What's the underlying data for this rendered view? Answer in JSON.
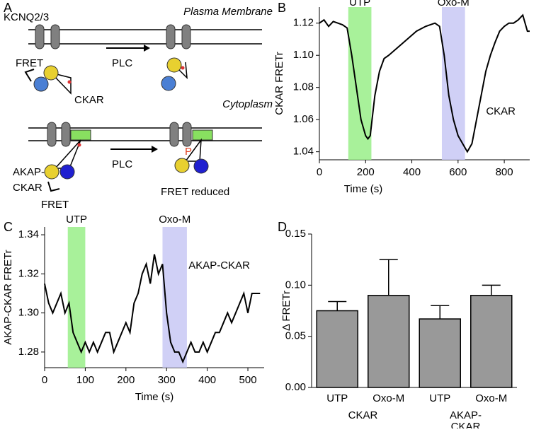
{
  "diagram": {
    "panel": "A",
    "texts": {
      "channel": "KCNQ2/3",
      "membrane": "Plasma Membrane",
      "fret1": "FRET",
      "plc1": "PLC",
      "ckar": "CKAR",
      "cytoplasm": "Cytoplasm",
      "akap1": "AKAP-",
      "akap2": "CKAR",
      "plc2": "PLC",
      "phospho": "P",
      "reduced": "FRET reduced",
      "fret2": "FRET"
    }
  },
  "chart_data": [
    {
      "type": "line",
      "panel": "B",
      "xlabel": "Time (s)",
      "ylabel": "CKAR FRETr",
      "annotation": "CKAR",
      "color": "#000000",
      "x": [
        0,
        20,
        40,
        60,
        80,
        100,
        120,
        140,
        160,
        180,
        200,
        210,
        220,
        240,
        260,
        280,
        300,
        340,
        380,
        420,
        460,
        500,
        520,
        540,
        560,
        580,
        600,
        620,
        640,
        660,
        680,
        700,
        720,
        740,
        760,
        780,
        800,
        820,
        840,
        860,
        880,
        900,
        910
      ],
      "values": [
        1.12,
        1.122,
        1.118,
        1.121,
        1.12,
        1.119,
        1.117,
        1.1,
        1.08,
        1.06,
        1.05,
        1.048,
        1.05,
        1.075,
        1.09,
        1.098,
        1.1,
        1.105,
        1.11,
        1.115,
        1.118,
        1.12,
        1.118,
        1.1,
        1.075,
        1.06,
        1.05,
        1.045,
        1.04,
        1.045,
        1.06,
        1.075,
        1.09,
        1.1,
        1.108,
        1.115,
        1.118,
        1.12,
        1.12,
        1.122,
        1.125,
        1.115,
        1.115
      ],
      "shades": [
        {
          "label": "UTP",
          "from": 125,
          "to": 225,
          "color": "#99ee88"
        },
        {
          "label": "Oxo-M",
          "from": 530,
          "to": 630,
          "color": "#c8c8f4"
        }
      ],
      "xlim": [
        0,
        910
      ],
      "ylim": [
        1.035,
        1.13
      ],
      "xticks": [
        0,
        200,
        400,
        600,
        800
      ],
      "yticks": [
        1.04,
        1.06,
        1.08,
        {
          "value": 1.1,
          "label": "1.10"
        },
        1.12
      ]
    },
    {
      "type": "line",
      "panel": "C",
      "xlabel": "Time (s)",
      "ylabel": "AKAP-CKAR FRETr",
      "annotation": "AKAP-CKAR",
      "color": "#000000",
      "x": [
        0,
        10,
        20,
        30,
        40,
        50,
        60,
        70,
        80,
        90,
        100,
        110,
        120,
        130,
        140,
        150,
        160,
        170,
        180,
        190,
        200,
        210,
        220,
        230,
        240,
        250,
        260,
        270,
        280,
        290,
        300,
        310,
        320,
        330,
        340,
        350,
        360,
        370,
        380,
        390,
        400,
        410,
        420,
        430,
        440,
        450,
        460,
        470,
        480,
        490,
        500,
        510,
        520,
        530
      ],
      "values": [
        1.315,
        1.305,
        1.3,
        1.305,
        1.31,
        1.3,
        1.305,
        1.29,
        1.285,
        1.28,
        1.285,
        1.28,
        1.285,
        1.28,
        1.285,
        1.29,
        1.29,
        1.28,
        1.285,
        1.29,
        1.295,
        1.29,
        1.305,
        1.31,
        1.32,
        1.325,
        1.315,
        1.33,
        1.32,
        1.325,
        1.3,
        1.285,
        1.28,
        1.28,
        1.275,
        1.28,
        1.285,
        1.28,
        1.28,
        1.285,
        1.28,
        1.285,
        1.29,
        1.29,
        1.295,
        1.3,
        1.295,
        1.3,
        1.305,
        1.31,
        1.3,
        1.31,
        1.31,
        1.31
      ],
      "shades": [
        {
          "label": "UTP",
          "from": 57,
          "to": 100,
          "color": "#99ee88"
        },
        {
          "label": "Oxo-M",
          "from": 290,
          "to": 350,
          "color": "#c8c8f4"
        }
      ],
      "xlim": [
        0,
        540
      ],
      "ylim": [
        1.272,
        1.344
      ],
      "xticks": [
        0,
        100,
        200,
        300,
        400,
        500
      ],
      "yticks": [
        1.28,
        {
          "value": 1.3,
          "label": "1.30"
        },
        1.32,
        1.34
      ]
    },
    {
      "type": "bar",
      "panel": "D",
      "ylabel": "Δ FRETr",
      "color": "#999999",
      "categories": [
        "UTP",
        "Oxo-M",
        "UTP",
        "Oxo-M"
      ],
      "values": [
        0.075,
        0.09,
        0.067,
        0.09
      ],
      "errors": [
        0.009,
        0.035,
        0.013,
        0.01
      ],
      "groups": [
        {
          "label": [
            "CKAR"
          ],
          "span": [
            0,
            1
          ]
        },
        {
          "label": [
            "AKAP-",
            "CKAR"
          ],
          "span": [
            2,
            3
          ]
        }
      ],
      "ylim": [
        0,
        0.15
      ],
      "yticks": [
        {
          "value": 0,
          "label": "0.00"
        },
        {
          "value": 0.05,
          "label": "0.05"
        },
        {
          "value": 0.1,
          "label": "0.10"
        },
        {
          "value": 0.15,
          "label": "0.15"
        }
      ]
    }
  ]
}
